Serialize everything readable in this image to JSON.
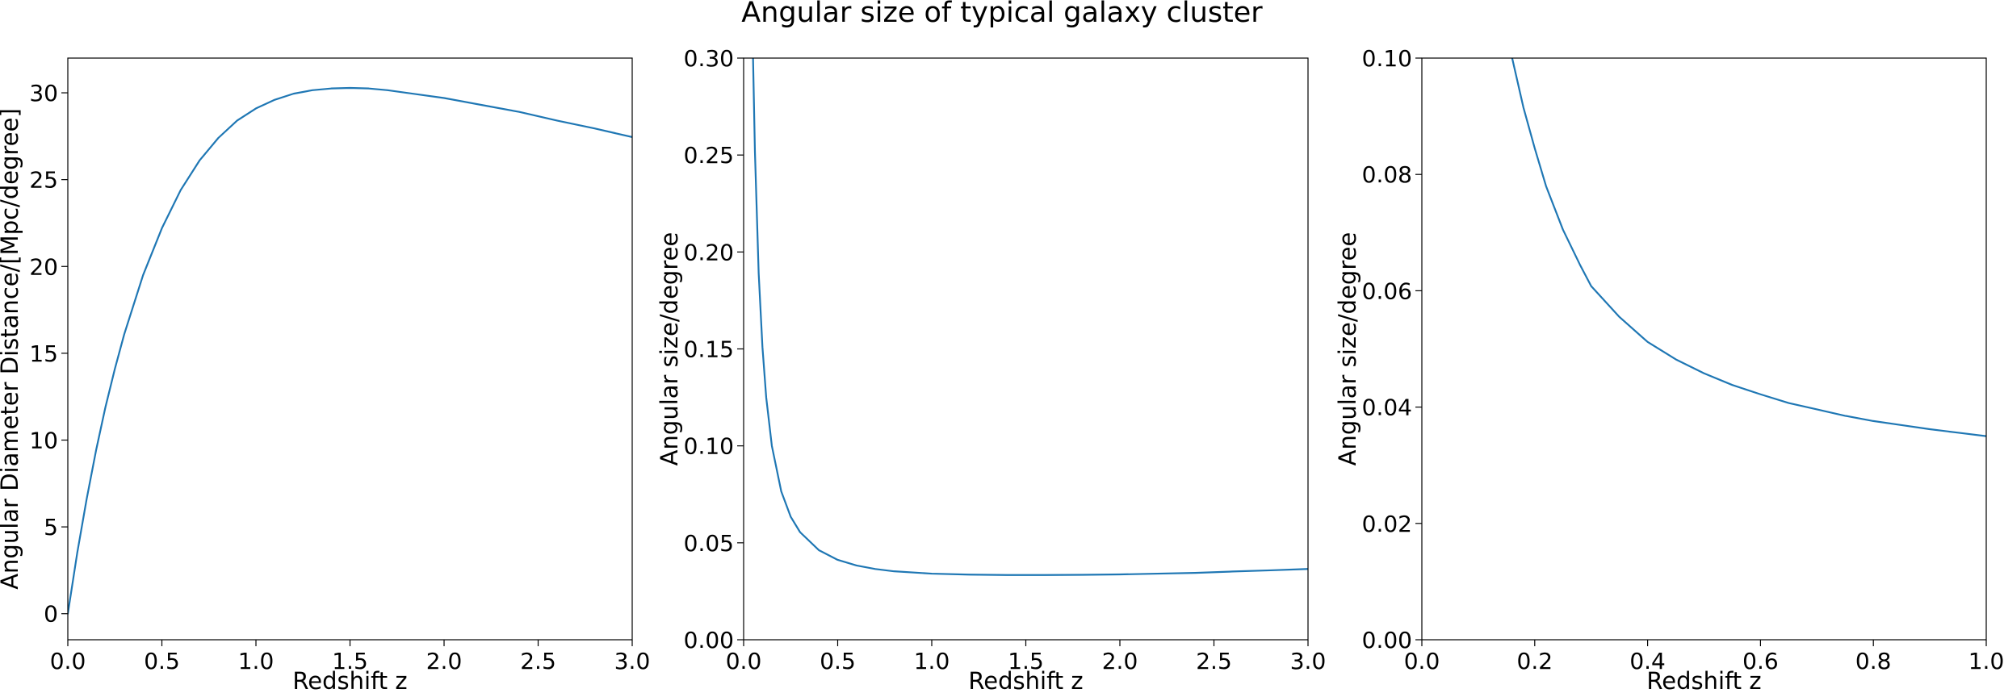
{
  "figure": {
    "title": "Angular size of typical galaxy cluster",
    "line_color": "#1f77b4"
  },
  "chart_data": [
    {
      "type": "line",
      "xlabel": "Redshift z",
      "ylabel": "Angular Diameter Distance/[Mpc/degree]",
      "xlim": [
        0,
        3
      ],
      "ylim": [
        -1.5,
        32
      ],
      "xticks": [
        0.0,
        0.5,
        1.0,
        1.5,
        2.0,
        2.5,
        3.0
      ],
      "xticklabels": [
        "0.0",
        "0.5",
        "1.0",
        "1.5",
        "2.0",
        "2.5",
        "3.0"
      ],
      "yticks": [
        0,
        5,
        10,
        15,
        20,
        25,
        30
      ],
      "yticklabels": [
        "0",
        "5",
        "10",
        "15",
        "20",
        "25",
        "30"
      ],
      "grid": false,
      "series": [
        {
          "x": [
            0.0,
            0.05,
            0.1,
            0.15,
            0.2,
            0.25,
            0.3,
            0.4,
            0.5,
            0.6,
            0.7,
            0.8,
            0.9,
            1.0,
            1.1,
            1.2,
            1.3,
            1.4,
            1.5,
            1.6,
            1.7,
            1.8,
            2.0,
            2.2,
            2.4,
            2.6,
            2.8,
            3.0
          ],
          "y": [
            0.0,
            3.5,
            6.6,
            9.4,
            11.9,
            14.1,
            16.1,
            19.5,
            22.2,
            24.4,
            26.1,
            27.4,
            28.4,
            29.1,
            29.6,
            29.95,
            30.15,
            30.25,
            30.28,
            30.25,
            30.15,
            30.0,
            29.7,
            29.3,
            28.9,
            28.4,
            27.95,
            27.45
          ]
        }
      ]
    },
    {
      "type": "line",
      "xlabel": "Redshift z",
      "ylabel": "Angular size/degree",
      "xlim": [
        0,
        3
      ],
      "ylim": [
        0,
        0.3
      ],
      "xticks": [
        0.0,
        0.5,
        1.0,
        1.5,
        2.0,
        2.5,
        3.0
      ],
      "xticklabels": [
        "0.0",
        "0.5",
        "1.0",
        "1.5",
        "2.0",
        "2.5",
        "3.0"
      ],
      "yticks": [
        0.0,
        0.05,
        0.1,
        0.15,
        0.2,
        0.25,
        0.3
      ],
      "yticklabels": [
        "0.00",
        "0.05",
        "0.10",
        "0.15",
        "0.20",
        "0.25",
        "0.30"
      ],
      "grid": false,
      "series": [
        {
          "x": [
            0.05,
            0.06,
            0.08,
            0.1,
            0.12,
            0.15,
            0.2,
            0.25,
            0.3,
            0.4,
            0.5,
            0.6,
            0.7,
            0.8,
            1.0,
            1.2,
            1.4,
            1.6,
            1.8,
            2.0,
            2.2,
            2.4,
            2.6,
            2.8,
            3.0
          ],
          "y": [
            0.3,
            0.252,
            0.189,
            0.151,
            0.125,
            0.1,
            0.0765,
            0.0635,
            0.0555,
            0.0462,
            0.0412,
            0.0383,
            0.0365,
            0.0353,
            0.0341,
            0.0336,
            0.0334,
            0.0334,
            0.0335,
            0.0337,
            0.0341,
            0.0345,
            0.0352,
            0.0358,
            0.0365
          ]
        }
      ]
    },
    {
      "type": "line",
      "xlabel": "Redshift z",
      "ylabel": "Angular size/degree",
      "xlim": [
        0,
        1
      ],
      "ylim": [
        0,
        0.1
      ],
      "xticks": [
        0.0,
        0.2,
        0.4,
        0.6,
        0.8,
        1.0
      ],
      "xticklabels": [
        "0.0",
        "0.2",
        "0.4",
        "0.6",
        "0.8",
        "1.0"
      ],
      "yticks": [
        0.0,
        0.02,
        0.04,
        0.06,
        0.08,
        0.1
      ],
      "yticklabels": [
        "0.00",
        "0.02",
        "0.04",
        "0.06",
        "0.08",
        "0.10"
      ],
      "grid": false,
      "series": [
        {
          "x": [
            0.16,
            0.18,
            0.2,
            0.22,
            0.25,
            0.28,
            0.3,
            0.35,
            0.4,
            0.45,
            0.5,
            0.55,
            0.6,
            0.65,
            0.7,
            0.75,
            0.8,
            0.85,
            0.9,
            0.95,
            1.0
          ],
          "y": [
            0.1,
            0.0915,
            0.0845,
            0.078,
            0.0705,
            0.0645,
            0.0608,
            0.0555,
            0.0512,
            0.0482,
            0.0458,
            0.0438,
            0.0422,
            0.0407,
            0.0396,
            0.0385,
            0.0376,
            0.0369,
            0.0362,
            0.0356,
            0.035
          ]
        }
      ]
    }
  ]
}
